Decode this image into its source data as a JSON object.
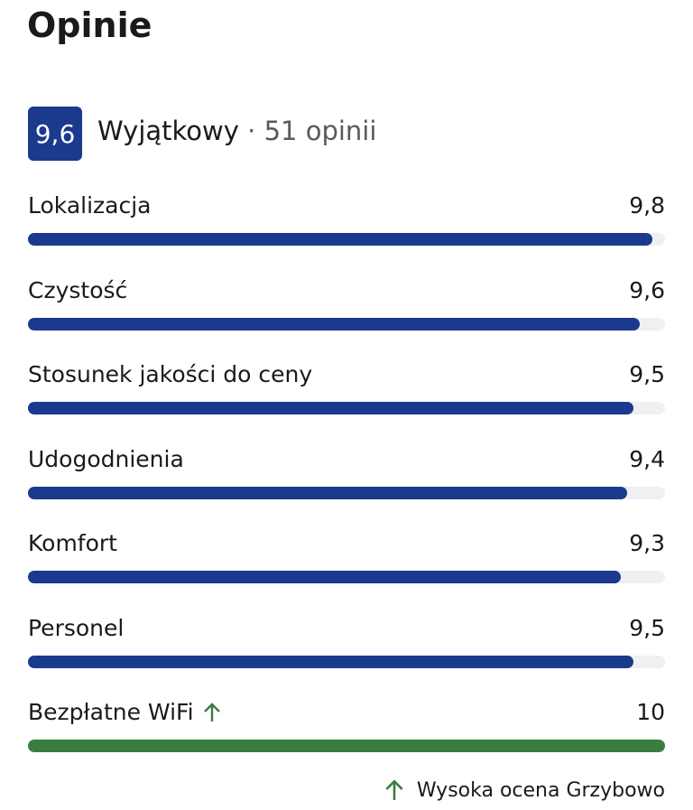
{
  "header": {
    "title": "Opinie"
  },
  "summary": {
    "score": "9,6",
    "rating": "Wyjątkowy",
    "count_text": "· 51 opinii"
  },
  "categories": {
    "xlim": [
      0,
      10
    ],
    "items": [
      {
        "name": "Lokalizacja",
        "value": 9.8,
        "value_label": "9,8",
        "color": "#1b3a8e"
      },
      {
        "name": "Czystość",
        "value": 9.6,
        "value_label": "9,6",
        "color": "#1b3a8e"
      },
      {
        "name": "Stosunek jakości do ceny",
        "value": 9.5,
        "value_label": "9,5",
        "color": "#1b3a8e"
      },
      {
        "name": "Udogodnienia",
        "value": 9.4,
        "value_label": "9,4",
        "color": "#1b3a8e"
      },
      {
        "name": "Komfort",
        "value": 9.3,
        "value_label": "9,3",
        "color": "#1b3a8e"
      },
      {
        "name": "Personel",
        "value": 9.5,
        "value_label": "9,5",
        "color": "#1b3a8e"
      },
      {
        "name": "Bezpłatne WiFi",
        "value": 10,
        "value_label": "10",
        "color": "#3b7d3f",
        "highlight": true
      }
    ]
  },
  "footer": {
    "text": "Wysoka ocena Grzybowo"
  }
}
